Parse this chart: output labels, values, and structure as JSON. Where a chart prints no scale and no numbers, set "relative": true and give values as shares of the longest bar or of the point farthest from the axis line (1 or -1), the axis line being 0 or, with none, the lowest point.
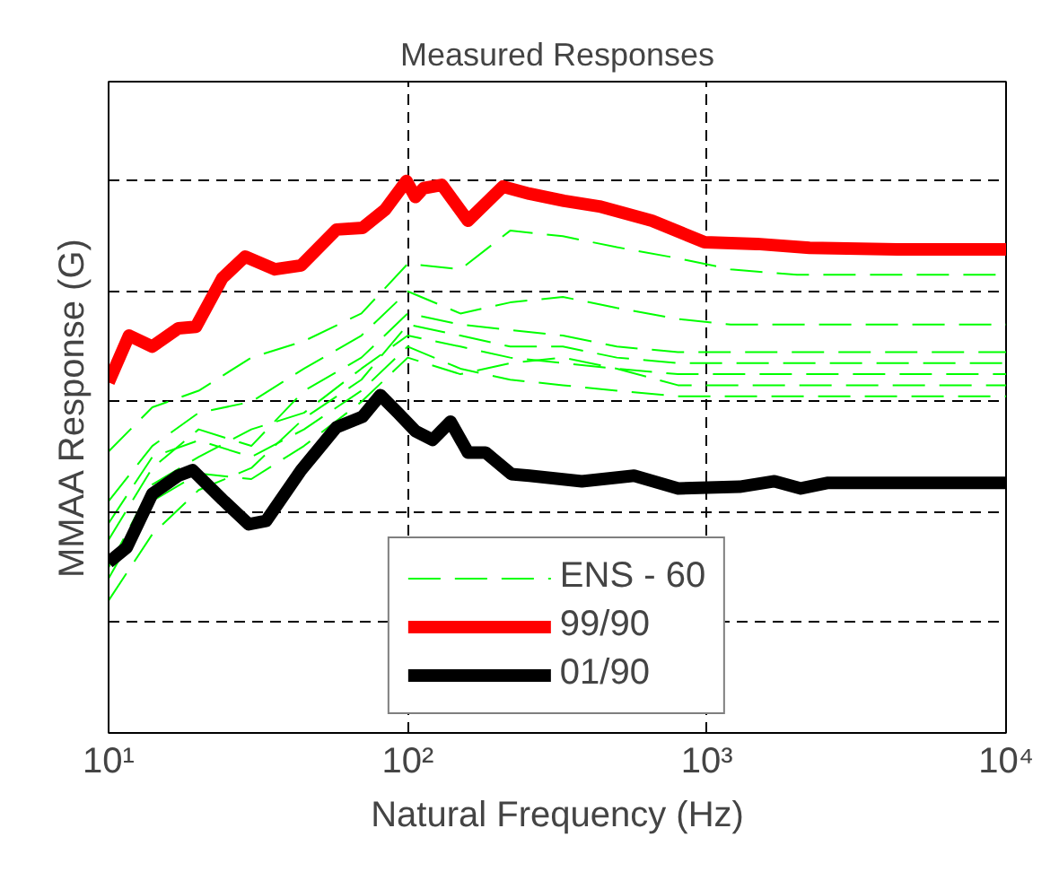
{
  "chart_data": {
    "type": "line",
    "title": "Measured Responses",
    "xlabel": "Natural Frequency (Hz)",
    "ylabel": "MMAA Response (G)",
    "log": "x",
    "relative": true,
    "grid": true,
    "legend": "bottom",
    "marker": "none",
    "xlim": [
      10,
      10000
    ],
    "xticks": [
      {
        "value": 10,
        "label": "10¹"
      },
      {
        "value": 100,
        "label": "10²"
      },
      {
        "value": 1000,
        "label": "10³"
      },
      {
        "value": 10000,
        "label": "10⁴"
      }
    ],
    "series": [
      {
        "name": "ENS - 60",
        "color": "#00ff00",
        "line_style": "dashed",
        "x": [
          10,
          14,
          20,
          30,
          45,
          70,
          100,
          150,
          220,
          330,
          500,
          800,
          1200,
          2000,
          4000,
          10000
        ],
        "values": [
          0.51,
          0.59,
          0.62,
          0.68,
          0.71,
          0.76,
          0.85,
          0.84,
          0.91,
          0.9,
          0.88,
          0.86,
          0.84,
          0.83,
          0.83,
          0.83
        ]
      },
      {
        "color": "#00ff00",
        "line_style": "dashed",
        "x": [
          10,
          14,
          20,
          30,
          45,
          70,
          100,
          150,
          220,
          330,
          500,
          800,
          1200,
          2000,
          4000,
          10000
        ],
        "values": [
          0.42,
          0.52,
          0.58,
          0.6,
          0.66,
          0.72,
          0.8,
          0.76,
          0.78,
          0.79,
          0.77,
          0.75,
          0.74,
          0.74,
          0.74,
          0.74
        ]
      },
      {
        "color": "#00ff00",
        "line_style": "dashed",
        "x": [
          10,
          14,
          20,
          30,
          45,
          70,
          100,
          150,
          220,
          330,
          500,
          800,
          1200,
          2000,
          4000,
          10000
        ],
        "values": [
          0.35,
          0.48,
          0.55,
          0.52,
          0.62,
          0.68,
          0.76,
          0.74,
          0.73,
          0.72,
          0.7,
          0.69,
          0.69,
          0.69,
          0.69,
          0.69
        ]
      },
      {
        "color": "#00ff00",
        "line_style": "dashed",
        "x": [
          10,
          14,
          20,
          30,
          45,
          70,
          100,
          150,
          220,
          330,
          500,
          800,
          1200,
          2000,
          4000,
          10000
        ],
        "values": [
          0.3,
          0.45,
          0.5,
          0.55,
          0.58,
          0.66,
          0.72,
          0.7,
          0.68,
          0.67,
          0.66,
          0.65,
          0.65,
          0.65,
          0.65,
          0.65
        ]
      },
      {
        "color": "#00ff00",
        "line_style": "dashed",
        "x": [
          10,
          14,
          20,
          30,
          45,
          70,
          100,
          150,
          220,
          330,
          500,
          800,
          1200,
          2000,
          4000,
          10000
        ],
        "values": [
          0.38,
          0.5,
          0.53,
          0.5,
          0.55,
          0.62,
          0.7,
          0.66,
          0.64,
          0.63,
          0.62,
          0.61,
          0.61,
          0.61,
          0.61,
          0.61
        ]
      },
      {
        "color": "#00ff00",
        "line_style": "dashed",
        "x": [
          10,
          14,
          20,
          30,
          45,
          70,
          100,
          150,
          220,
          330,
          500,
          800,
          1200,
          2000,
          4000,
          10000
        ],
        "values": [
          0.28,
          0.42,
          0.47,
          0.46,
          0.52,
          0.6,
          0.68,
          0.65,
          0.67,
          0.68,
          0.66,
          0.63,
          0.63,
          0.63,
          0.63,
          0.63
        ]
      },
      {
        "color": "#00ff00",
        "line_style": "dashed",
        "x": [
          10,
          14,
          20,
          30,
          45,
          70,
          100,
          150,
          220,
          330,
          500,
          800,
          1200,
          2000,
          4000,
          10000
        ],
        "values": [
          0.24,
          0.36,
          0.44,
          0.48,
          0.57,
          0.64,
          0.74,
          0.72,
          0.7,
          0.7,
          0.68,
          0.67,
          0.67,
          0.67,
          0.67,
          0.67
        ]
      },
      {
        "name": "99/90",
        "color": "#ff0000",
        "line_style": "solid",
        "x": [
          10,
          11.7,
          14,
          17.1,
          19.6,
          24,
          28.6,
          36,
          44,
          57.8,
          70.6,
          84,
          99,
          106,
          113,
          130,
          159,
          208,
          255,
          333,
          437,
          655,
          982,
          1472,
          2203,
          4325,
          10000
        ],
        "values": [
          0.635,
          0.72,
          0.7,
          0.733,
          0.736,
          0.824,
          0.863,
          0.84,
          0.847,
          0.912,
          0.915,
          0.948,
          1.0,
          0.971,
          0.987,
          0.993,
          0.928,
          0.99,
          0.977,
          0.964,
          0.954,
          0.928,
          0.889,
          0.886,
          0.879,
          0.876,
          0.876
        ]
      },
      {
        "name": "01/90",
        "color": "#000000",
        "line_style": "solid",
        "x": [
          10,
          11.5,
          14,
          17.1,
          19.1,
          24,
          29.4,
          33.6,
          44,
          57.8,
          70.6,
          81,
          92.7,
          106,
          121,
          139,
          159,
          182,
          222,
          255,
          382,
          571,
          802,
          1285,
          1683,
          2061,
          2523,
          10000
        ],
        "values": [
          0.309,
          0.336,
          0.433,
          0.466,
          0.476,
          0.423,
          0.378,
          0.384,
          0.476,
          0.554,
          0.573,
          0.612,
          0.58,
          0.547,
          0.531,
          0.564,
          0.508,
          0.508,
          0.469,
          0.466,
          0.456,
          0.466,
          0.443,
          0.446,
          0.456,
          0.443,
          0.453,
          0.453
        ]
      }
    ]
  }
}
